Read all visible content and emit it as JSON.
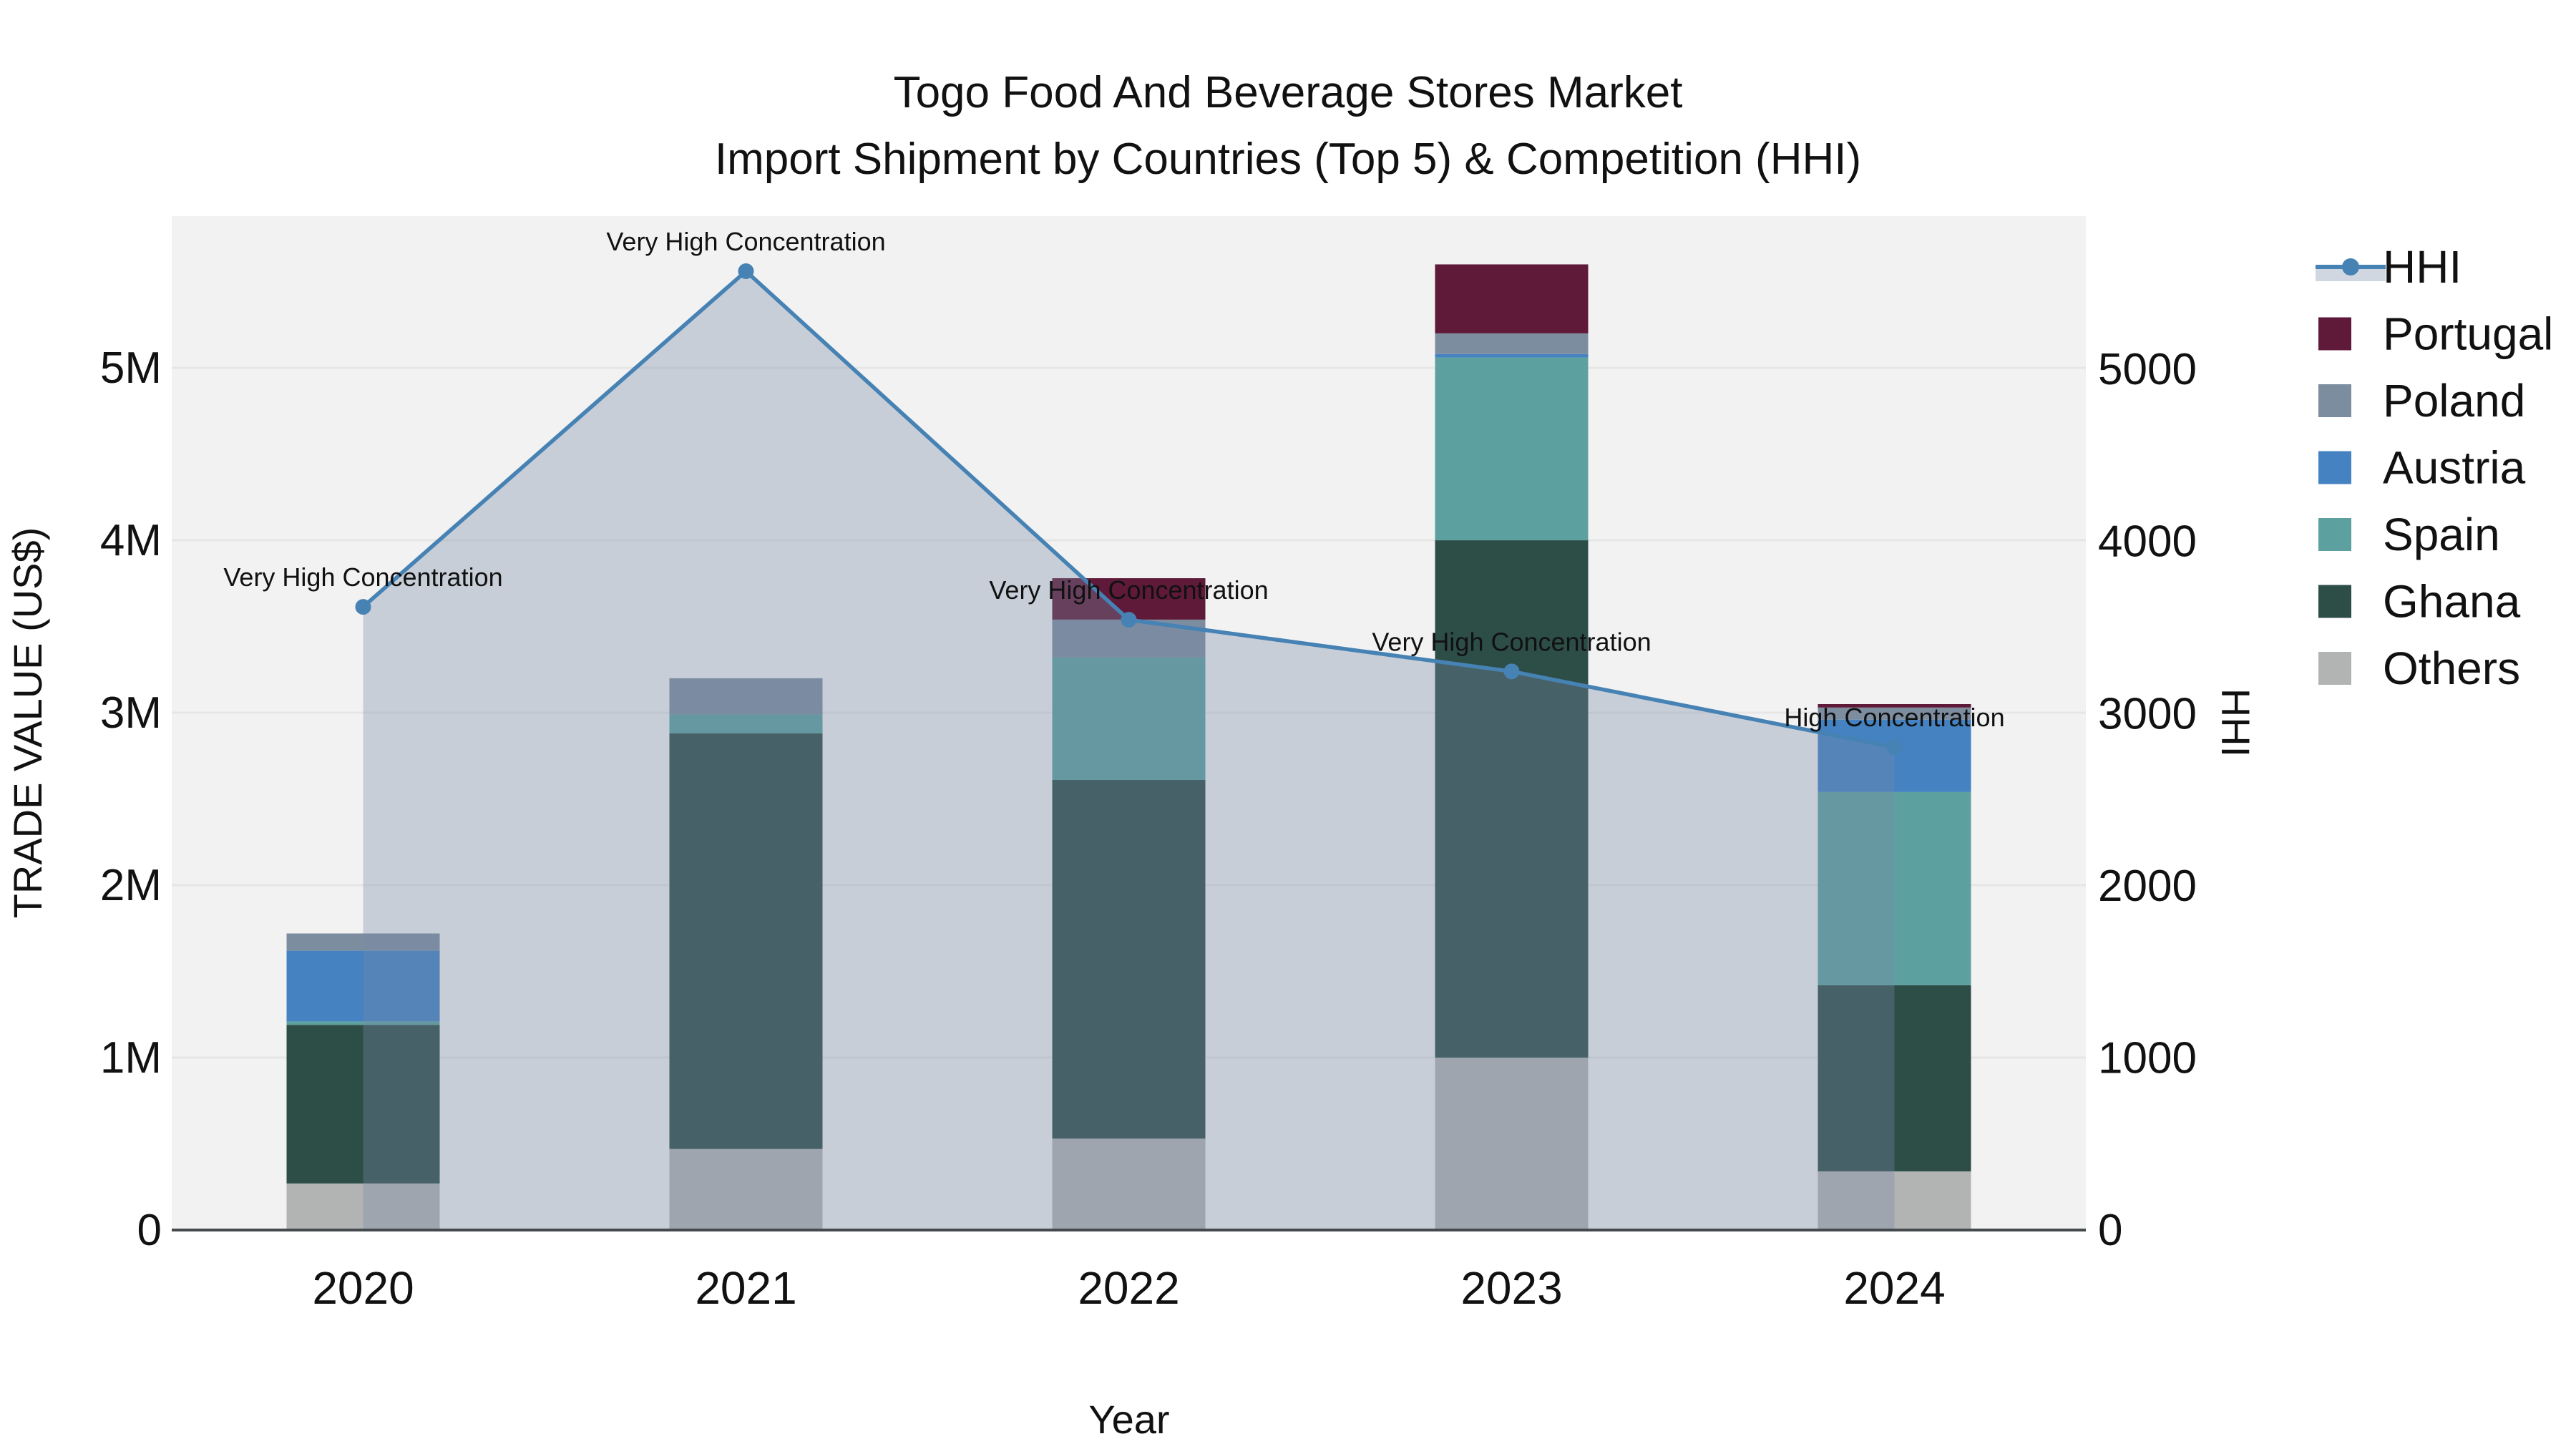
{
  "title": {
    "line1": "Togo Food And Beverage Stores Market",
    "line2": "Import Shipment by Countries (Top 5) & Competition (HHI)"
  },
  "chart_data": {
    "type": "bar+line",
    "categories": [
      "2020",
      "2021",
      "2022",
      "2023",
      "2024"
    ],
    "xlabel": "Year",
    "ylabel_left": "TRADE VALUE (US$)",
    "ylabel_right": "HHI",
    "grid": true,
    "plot_bg_color": "#f2f2f2",
    "grid_color": "#e6e6e6",
    "axisline_color": "#444a4e",
    "yaxis_left": {
      "max_millions": 5.88,
      "ticks": [
        {
          "label": "0",
          "value": 0
        },
        {
          "label": "1M",
          "value": 1
        },
        {
          "label": "2M",
          "value": 2
        },
        {
          "label": "3M",
          "value": 3
        },
        {
          "label": "4M",
          "value": 4
        },
        {
          "label": "5M",
          "value": 5
        }
      ]
    },
    "yaxis_right": {
      "max": 5890,
      "ticks": [
        {
          "label": "0",
          "value": 0
        },
        {
          "label": "1000",
          "value": 1000
        },
        {
          "label": "2000",
          "value": 2000
        },
        {
          "label": "3000",
          "value": 3000
        },
        {
          "label": "4000",
          "value": 4000
        },
        {
          "label": "5000",
          "value": 5000
        }
      ]
    },
    "bar_series": [
      {
        "name": "Others",
        "color": "#b2b4b3",
        "values_millions": [
          0.27,
          0.47,
          0.53,
          1.0,
          0.34
        ]
      },
      {
        "name": "Ghana",
        "color": "#2d4d47",
        "values_millions": [
          0.92,
          2.41,
          2.08,
          3.0,
          1.08
        ]
      },
      {
        "name": "Spain",
        "color": "#5da0a0",
        "values_millions": [
          0.02,
          0.11,
          0.71,
          1.06,
          1.12
        ]
      },
      {
        "name": "Austria",
        "color": "#4482c1",
        "values_millions": [
          0.41,
          0.0,
          0.0,
          0.02,
          0.42
        ]
      },
      {
        "name": "Poland",
        "color": "#7d8da0",
        "values_millions": [
          0.1,
          0.21,
          0.22,
          0.12,
          0.07
        ]
      },
      {
        "name": "Portugal",
        "color": "#5e1a38",
        "values_millions": [
          0.0,
          0.0,
          0.24,
          0.4,
          0.02
        ]
      }
    ],
    "line_series": {
      "name": "HHI",
      "color": "#4682b4",
      "fill_color": "rgba(120,138,168,0.34)",
      "values": [
        3620,
        5570,
        3545,
        3245,
        2805
      ]
    },
    "annotations": [
      {
        "category_index": 0,
        "text": "Very High Concentration"
      },
      {
        "category_index": 1,
        "text": "Very High Concentration"
      },
      {
        "category_index": 2,
        "text": "Very High Concentration"
      },
      {
        "category_index": 3,
        "text": "Very High Concentration"
      },
      {
        "category_index": 4,
        "text": "High Concentration"
      }
    ],
    "legend": [
      {
        "name": "HHI",
        "type": "line",
        "color": "#4682b4"
      },
      {
        "name": "Portugal",
        "type": "swatch",
        "color": "#5e1a38"
      },
      {
        "name": "Poland",
        "type": "swatch",
        "color": "#7d8da0"
      },
      {
        "name": "Austria",
        "type": "swatch",
        "color": "#4482c1"
      },
      {
        "name": "Spain",
        "type": "swatch",
        "color": "#5da0a0"
      },
      {
        "name": "Ghana",
        "type": "swatch",
        "color": "#2d4d47"
      },
      {
        "name": "Others",
        "type": "swatch",
        "color": "#b2b4b3"
      }
    ]
  }
}
